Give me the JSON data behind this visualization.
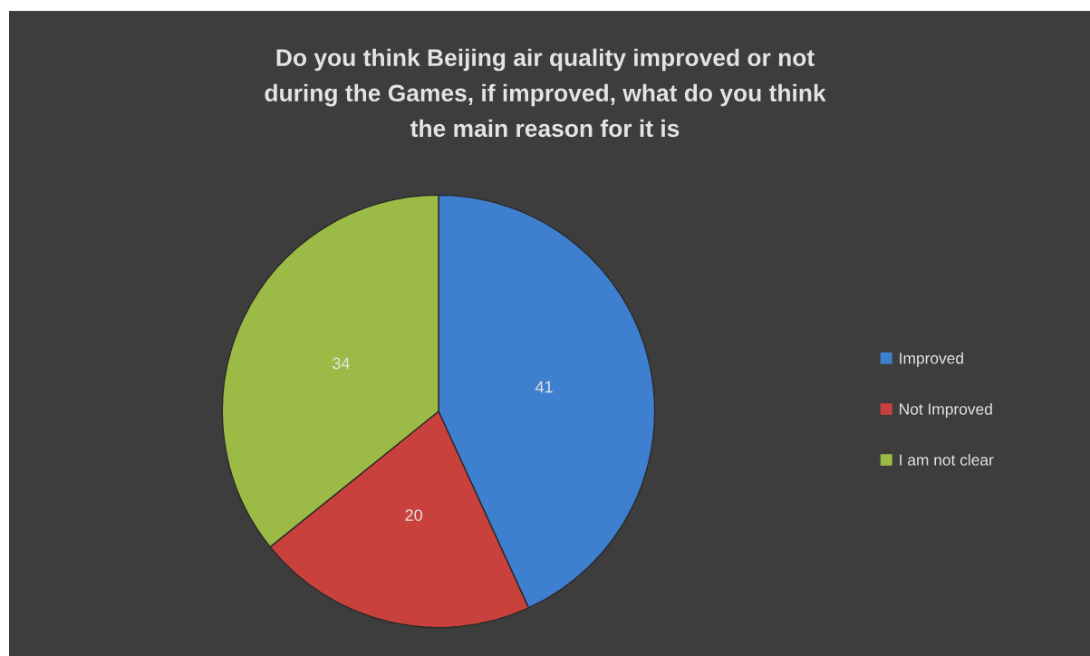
{
  "chart_data": {
    "type": "pie",
    "title": "Do you think Beijing air quality improved or not\nduring the Games, if improved, what do you think\nthe main reason for it is",
    "categories": [
      "Improved",
      "Not Improved",
      "I am not clear"
    ],
    "values": [
      41,
      20,
      34
    ],
    "colors": [
      "#3f7fcf",
      "#c8413c",
      "#9bbb46"
    ],
    "data_labels": true,
    "legend": "right"
  }
}
